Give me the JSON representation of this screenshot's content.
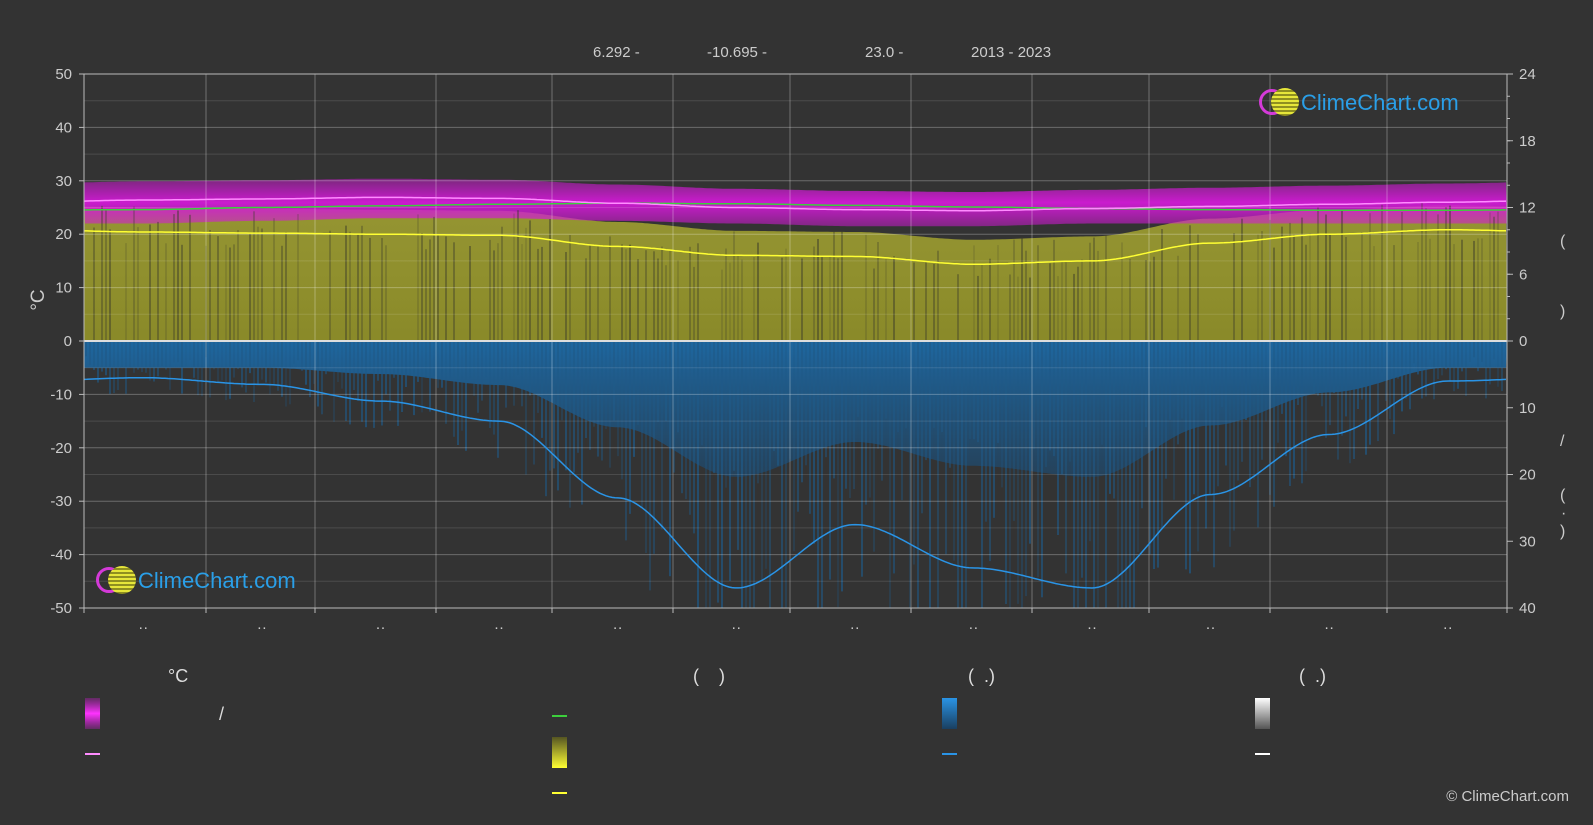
{
  "header": {
    "latitude": "6.292 -",
    "longitude": "-10.695 -",
    "elevation": "23.0 -",
    "years": "2013 - 2023"
  },
  "chart_data": {
    "type": "area",
    "months": [
      "··",
      "··",
      "··",
      "··",
      "··",
      "··",
      "··",
      "··",
      "··",
      "··",
      "··",
      "··"
    ],
    "left_axis": {
      "label": "°C",
      "range": [
        -50,
        50
      ],
      "ticks": [
        50,
        40,
        30,
        20,
        10,
        0,
        -10,
        -20,
        -30,
        -40,
        -50
      ]
    },
    "right_axis_top": {
      "range": [
        0,
        24
      ],
      "ticks": [
        24,
        18,
        12,
        6,
        0
      ]
    },
    "right_axis_bottom": {
      "range": [
        0,
        40
      ],
      "ticks": [
        0,
        10,
        20,
        30,
        40
      ]
    },
    "series": [
      {
        "key": "temp_max",
        "values": [
          26.4,
          26.6,
          26.9,
          26.7,
          25.8,
          25.0,
          24.6,
          24.4,
          24.8,
          25.2,
          25.6,
          26.0
        ]
      },
      {
        "key": "temp_mean_green",
        "values": [
          24.6,
          25.0,
          25.3,
          25.6,
          25.8,
          25.7,
          25.4,
          25.1,
          24.8,
          24.6,
          24.5,
          24.5
        ]
      },
      {
        "key": "temp_min_band",
        "values": [
          22.0,
          22.5,
          23.0,
          23.0,
          22.5,
          22.0,
          21.5,
          21.5,
          22.0,
          22.0,
          22.0,
          22.0
        ]
      },
      {
        "key": "sunshine_hours",
        "values": [
          9.8,
          9.7,
          9.6,
          9.5,
          8.5,
          7.7,
          7.6,
          6.9,
          7.2,
          8.8,
          9.6,
          10.0
        ]
      },
      {
        "key": "precipitation_mm",
        "values": [
          5.5,
          6.5,
          9.0,
          12.0,
          23.5,
          37.0,
          27.5,
          34.0,
          37.0,
          23.0,
          14.0,
          6.0
        ]
      }
    ],
    "colors": {
      "temp_band": "#d21ad6",
      "temp_max_line": "#ff8cff",
      "mean_line": "#3ccf3c",
      "sunshine_band": "#9b9b2c",
      "sunshine_line": "#ffff33",
      "rain_band": "#1c5f92",
      "rain_line": "#2a94e6",
      "snow": "#ffffff"
    }
  },
  "legend": {
    "col1_title": "°C",
    "col1_sep": "/",
    "col2_title": "(    )",
    "col3_title": "(  .)",
    "col4_title": "(  .)"
  },
  "right_axis_labels": [
    "(",
    ")",
    "/",
    "(",
    "·",
    ")"
  ],
  "logo": {
    "text": "ClimeChart.com"
  },
  "copyright": "© ClimeChart.com"
}
